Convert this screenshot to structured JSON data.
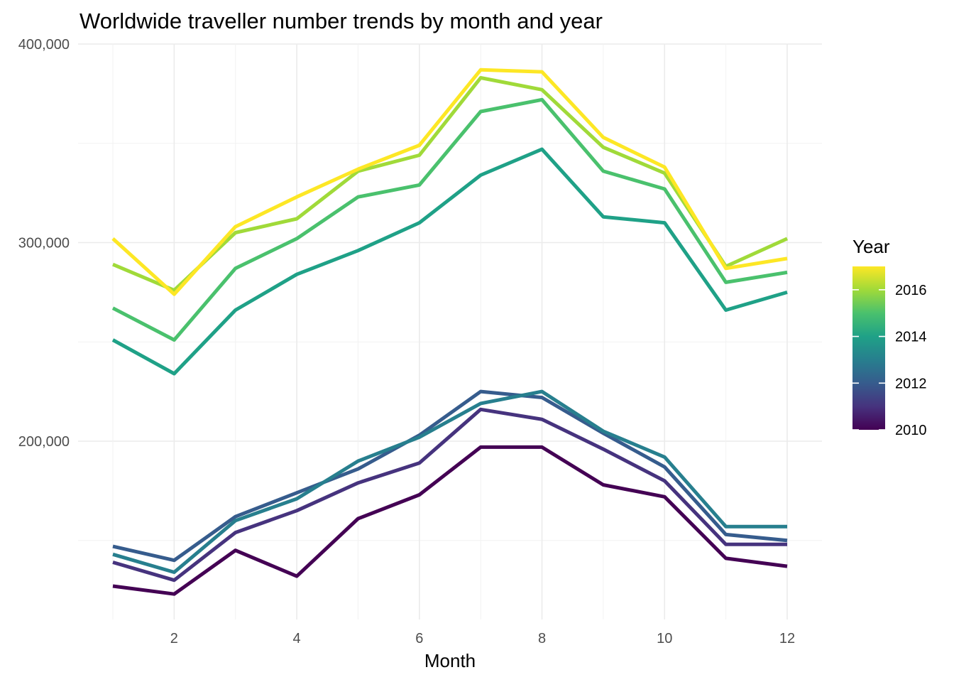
{
  "chart_data": {
    "type": "line",
    "title": "Worldwide traveller number trends by month and year",
    "xlabel": "Month",
    "ylabel": "",
    "x": [
      1,
      2,
      3,
      4,
      5,
      6,
      7,
      8,
      9,
      10,
      11,
      12
    ],
    "xlim": [
      1,
      12
    ],
    "xticks": [
      2,
      4,
      6,
      8,
      10,
      12
    ],
    "xtick_labels": [
      "2",
      "4",
      "6",
      "8",
      "10",
      "12"
    ],
    "ylim": [
      128000,
      400000
    ],
    "yticks": [
      200000,
      300000,
      400000
    ],
    "ytick_labels": [
      "200,000",
      "300,000",
      "400,000"
    ],
    "grid": true,
    "legend": {
      "title": "Year",
      "type": "colorbar",
      "placement": "right",
      "range": [
        2010,
        2017
      ],
      "ticks": [
        2010,
        2012,
        2014,
        2016
      ],
      "tick_labels": [
        "2010",
        "2012",
        "2014",
        "2016"
      ],
      "gradient_colors": [
        "#440154",
        "#46337e",
        "#365c8d",
        "#277f8e",
        "#1fa187",
        "#4ac16d",
        "#a0da39",
        "#fde725"
      ]
    },
    "series": [
      {
        "year": 2010,
        "color": "#440154",
        "values": [
          127000,
          123000,
          145000,
          132000,
          161000,
          173000,
          197000,
          197000,
          178000,
          172000,
          141000,
          137000
        ]
      },
      {
        "year": 2011,
        "color": "#46337e",
        "values": [
          139000,
          130000,
          154000,
          165000,
          179000,
          189000,
          216000,
          211000,
          196000,
          180000,
          148000,
          148000
        ]
      },
      {
        "year": 2012,
        "color": "#365c8d",
        "values": [
          147000,
          140000,
          162000,
          174000,
          186000,
          203000,
          225000,
          222000,
          204000,
          187000,
          153000,
          150000
        ]
      },
      {
        "year": 2013,
        "color": "#277f8e",
        "values": [
          143000,
          134000,
          160000,
          171000,
          190000,
          202000,
          219000,
          225000,
          205000,
          192000,
          157000,
          157000
        ]
      },
      {
        "year": 2014,
        "color": "#1fa187",
        "values": [
          251000,
          234000,
          266000,
          284000,
          296000,
          310000,
          334000,
          347000,
          313000,
          310000,
          266000,
          275000
        ]
      },
      {
        "year": 2015,
        "color": "#4ac16d",
        "values": [
          267000,
          251000,
          287000,
          302000,
          323000,
          329000,
          366000,
          372000,
          336000,
          327000,
          280000,
          285000
        ]
      },
      {
        "year": 2016,
        "color": "#a0da39",
        "values": [
          289000,
          276000,
          305000,
          312000,
          336000,
          344000,
          383000,
          377000,
          348000,
          335000,
          288000,
          302000
        ]
      },
      {
        "year": 2017,
        "color": "#fde725",
        "values": [
          302000,
          274000,
          308000,
          323000,
          337000,
          349000,
          387000,
          386000,
          353000,
          338000,
          287000,
          292000
        ]
      }
    ]
  }
}
